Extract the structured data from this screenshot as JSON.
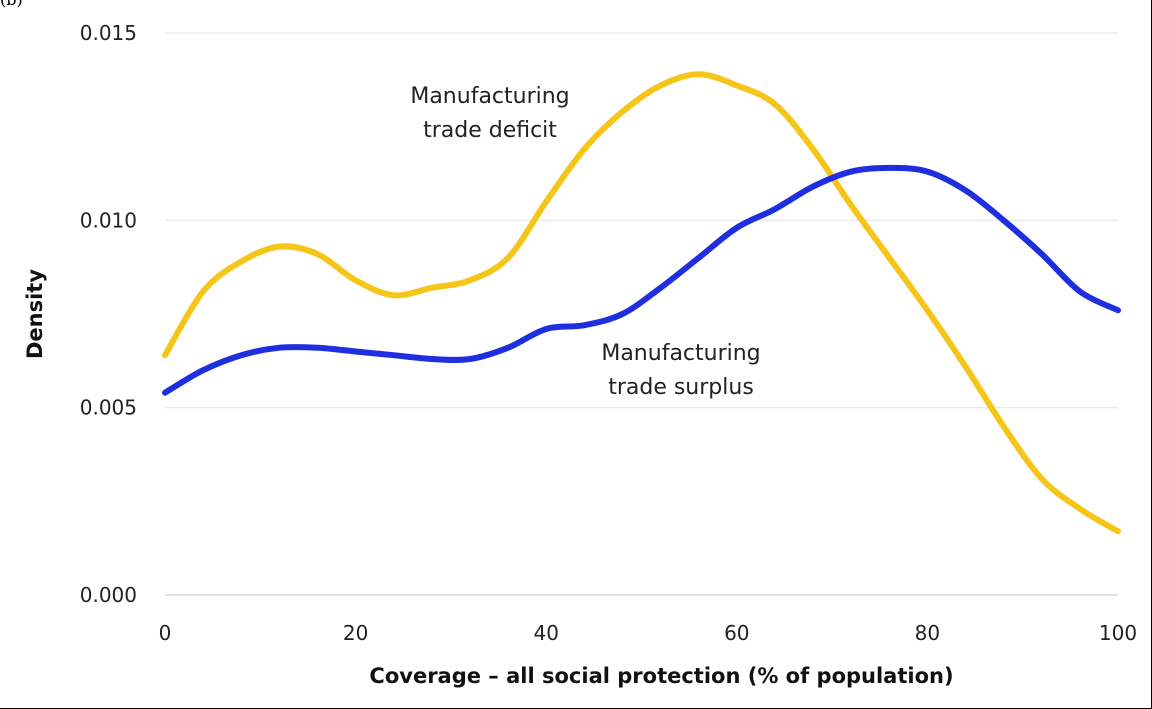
{
  "panel_label": "(b)",
  "chart_data": {
    "type": "line",
    "title": "",
    "xlabel": "Coverage – all social protection (% of population)",
    "ylabel": "Density",
    "xlim": [
      0,
      100
    ],
    "ylim": [
      0,
      0.015
    ],
    "x_ticks": [
      "0",
      "20",
      "40",
      "60",
      "80",
      "100"
    ],
    "y_ticks": [
      "0.000",
      "0.005",
      "0.010",
      "0.015"
    ],
    "grid": "horizontal",
    "legend": "none (inline annotations)",
    "series": [
      {
        "name": "Manufacturing trade deficit",
        "annotation_lines": [
          "Manufacturing",
          "trade deficit"
        ],
        "color": "#F5C518",
        "x": [
          0,
          4,
          8,
          12,
          16,
          20,
          24,
          28,
          32,
          36,
          40,
          44,
          48,
          52,
          56,
          60,
          64,
          68,
          72,
          76,
          80,
          84,
          88,
          92,
          96,
          100
        ],
        "y": [
          0.0064,
          0.0081,
          0.0089,
          0.0093,
          0.0091,
          0.0084,
          0.008,
          0.0082,
          0.0084,
          0.009,
          0.0105,
          0.0119,
          0.0129,
          0.0136,
          0.0139,
          0.0136,
          0.0131,
          0.0119,
          0.0104,
          0.009,
          0.0076,
          0.0061,
          0.0045,
          0.0031,
          0.0023,
          0.0017
        ]
      },
      {
        "name": "Manufacturing trade surplus",
        "annotation_lines": [
          "Manufacturing",
          "trade surplus"
        ],
        "color": "#1F2FE0",
        "x": [
          0,
          4,
          8,
          12,
          16,
          20,
          24,
          28,
          32,
          36,
          40,
          44,
          48,
          52,
          56,
          60,
          64,
          68,
          72,
          76,
          80,
          84,
          88,
          92,
          96,
          100
        ],
        "y": [
          0.0054,
          0.006,
          0.0064,
          0.0066,
          0.0066,
          0.0065,
          0.0064,
          0.0063,
          0.0063,
          0.0066,
          0.0071,
          0.0072,
          0.0075,
          0.0082,
          0.009,
          0.0098,
          0.0103,
          0.0109,
          0.0113,
          0.0114,
          0.0113,
          0.0108,
          0.01,
          0.0091,
          0.0081,
          0.0076
        ]
      }
    ]
  }
}
